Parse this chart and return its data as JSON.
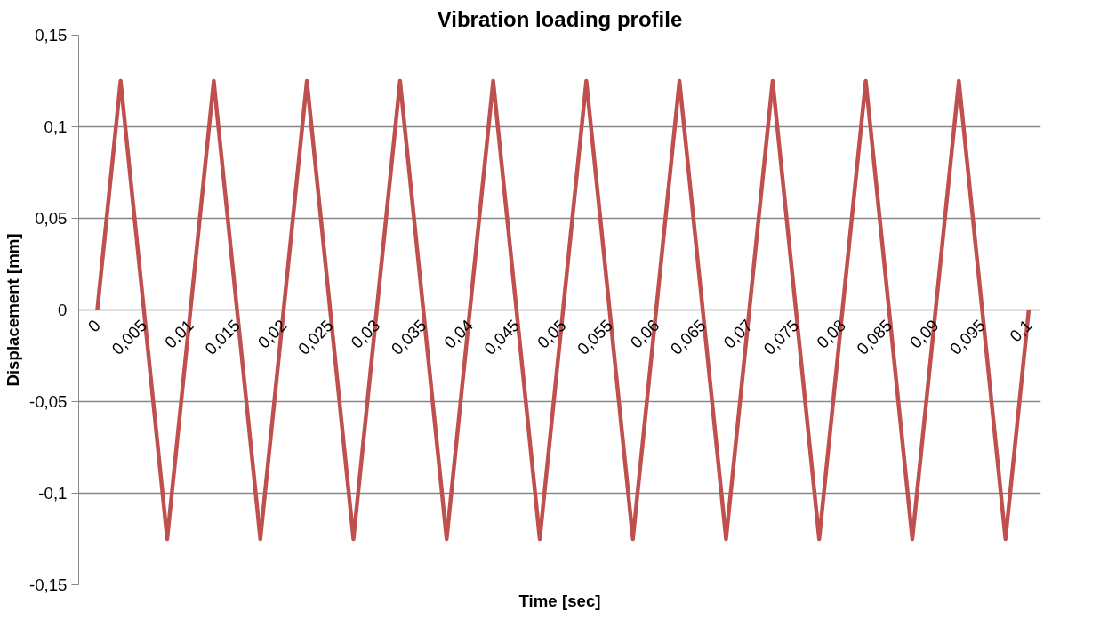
{
  "chart_data": {
    "type": "line",
    "title": "Vibration loading profile",
    "xlabel": "Time [sec]",
    "ylabel": "Displacement [mm]",
    "x": [
      0,
      0.0025,
      0.0075,
      0.0125,
      0.0175,
      0.0225,
      0.0275,
      0.0325,
      0.0375,
      0.0425,
      0.0475,
      0.0525,
      0.0575,
      0.0625,
      0.0675,
      0.0725,
      0.0775,
      0.0825,
      0.0875,
      0.0925,
      0.0975,
      0.1
    ],
    "series": [
      {
        "color": "#c0504d",
        "values": [
          0,
          0.125,
          -0.125,
          0.125,
          -0.125,
          0.125,
          -0.125,
          0.125,
          -0.125,
          0.125,
          -0.125,
          0.125,
          -0.125,
          0.125,
          -0.125,
          0.125,
          -0.125,
          0.125,
          -0.125,
          0.125,
          -0.125,
          0
        ]
      }
    ],
    "xlim": [
      -0.002,
      0.1013
    ],
    "xticks": [
      0,
      {
        "value": 0.005,
        "label": "0,005"
      },
      {
        "value": 0.01,
        "label": "0,01"
      },
      {
        "value": 0.015,
        "label": "0,015"
      },
      {
        "value": 0.02,
        "label": "0,02"
      },
      {
        "value": 0.025,
        "label": "0,025"
      },
      {
        "value": 0.03,
        "label": "0,03"
      },
      {
        "value": 0.035,
        "label": "0,035"
      },
      {
        "value": 0.04,
        "label": "0,04"
      },
      {
        "value": 0.045,
        "label": "0,045"
      },
      {
        "value": 0.05,
        "label": "0,05"
      },
      {
        "value": 0.055,
        "label": "0,055"
      },
      {
        "value": 0.06,
        "label": "0,06"
      },
      {
        "value": 0.065,
        "label": "0,065"
      },
      {
        "value": 0.07,
        "label": "0,07"
      },
      {
        "value": 0.075,
        "label": "0,075"
      },
      {
        "value": 0.08,
        "label": "0,08"
      },
      {
        "value": 0.085,
        "label": "0,085"
      },
      {
        "value": 0.09,
        "label": "0,09"
      },
      {
        "value": 0.095,
        "label": "0,095"
      },
      {
        "value": 0.1,
        "label": "0,1"
      }
    ],
    "ylim": [
      -0.15,
      0.15
    ],
    "yticks": [
      {
        "value": -0.15,
        "label": "-0,15"
      },
      {
        "value": -0.1,
        "label": "-0,1"
      },
      {
        "value": -0.05,
        "label": "-0,05"
      },
      0,
      {
        "value": 0.05,
        "label": "0,05"
      },
      {
        "value": 0.1,
        "label": "0,1"
      },
      {
        "value": 0.15,
        "label": "0,15"
      }
    ],
    "grid": "y",
    "marker": "none",
    "line_style": "solid"
  }
}
